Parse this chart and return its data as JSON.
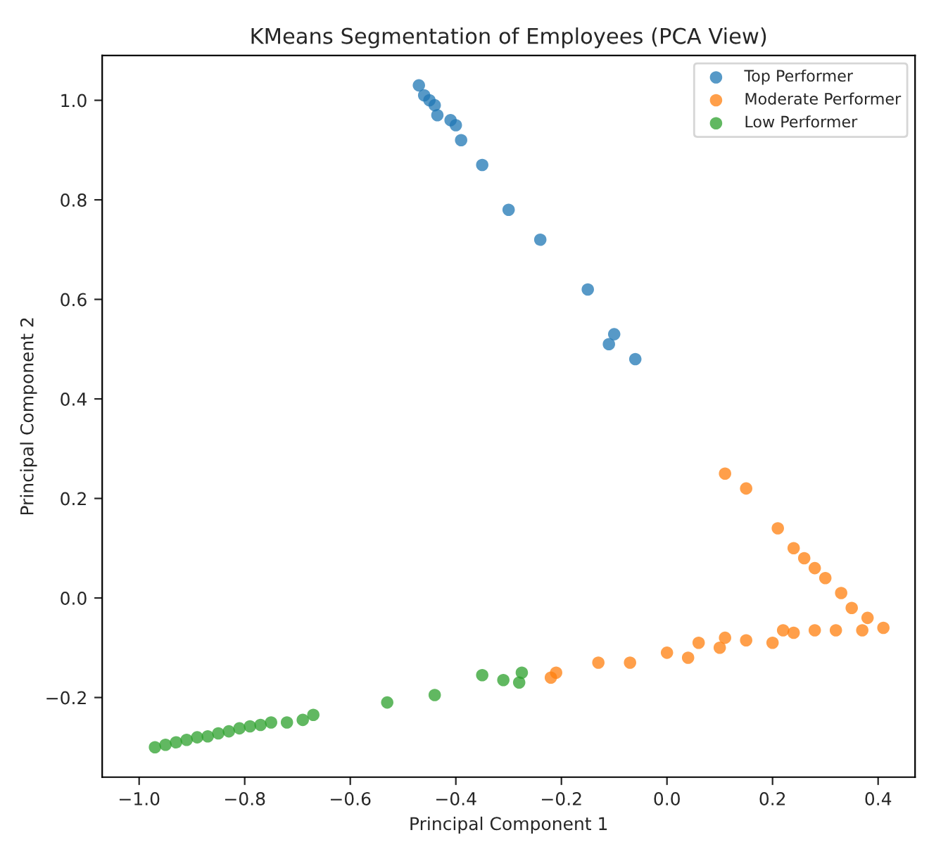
{
  "chart_data": {
    "type": "scatter",
    "title": "KMeans Segmentation of Employees (PCA View)",
    "xlabel": "Principal Component 1",
    "ylabel": "Principal Component 2",
    "xlim": [
      -1.07,
      0.47
    ],
    "ylim": [
      -0.36,
      1.09
    ],
    "xticks": [
      {
        "value": -1.0,
        "label": "−1.0"
      },
      {
        "value": -0.8,
        "label": "−0.8"
      },
      {
        "value": -0.6,
        "label": "−0.6"
      },
      {
        "value": -0.4,
        "label": "−0.4"
      },
      {
        "value": -0.2,
        "label": "−0.2"
      },
      {
        "value": 0.0,
        "label": "0.0"
      },
      {
        "value": 0.2,
        "label": "0.2"
      },
      {
        "value": 0.4,
        "label": "0.4"
      }
    ],
    "yticks": [
      {
        "value": -0.2,
        "label": "−0.2"
      },
      {
        "value": 0.0,
        "label": "0.0"
      },
      {
        "value": 0.2,
        "label": "0.2"
      },
      {
        "value": 0.4,
        "label": "0.4"
      },
      {
        "value": 0.6,
        "label": "0.6"
      },
      {
        "value": 0.8,
        "label": "0.8"
      },
      {
        "value": 1.0,
        "label": "1.0"
      }
    ],
    "legend": "top right",
    "grid": false,
    "marker": "circle",
    "series": [
      {
        "name": "Top Performer",
        "color": "#1f77b4",
        "x": [
          -0.47,
          -0.46,
          -0.45,
          -0.44,
          -0.435,
          -0.41,
          -0.4,
          -0.39,
          -0.35,
          -0.3,
          -0.24,
          -0.15,
          -0.11,
          -0.1,
          -0.06
        ],
        "values": [
          1.03,
          1.01,
          1.0,
          0.99,
          0.97,
          0.96,
          0.95,
          0.92,
          0.87,
          0.78,
          0.72,
          0.62,
          0.51,
          0.53,
          0.48
        ]
      },
      {
        "name": "Moderate Performer",
        "color": "#ff7f0e",
        "x": [
          0.11,
          0.15,
          0.21,
          0.24,
          0.26,
          0.28,
          0.3,
          0.33,
          0.35,
          0.38,
          0.41,
          0.37,
          0.32,
          0.28,
          0.24,
          0.22,
          0.2,
          0.15,
          0.11,
          0.1,
          0.06,
          0.04,
          0.0,
          -0.07,
          -0.13,
          -0.21,
          -0.22
        ],
        "values": [
          0.25,
          0.22,
          0.14,
          0.1,
          0.08,
          0.06,
          0.04,
          0.01,
          -0.02,
          -0.04,
          -0.06,
          -0.065,
          -0.065,
          -0.065,
          -0.07,
          -0.065,
          -0.09,
          -0.085,
          -0.08,
          -0.1,
          -0.09,
          -0.12,
          -0.11,
          -0.13,
          -0.13,
          -0.15,
          -0.16
        ]
      },
      {
        "name": "Low Performer",
        "color": "#2ca02c",
        "x": [
          -0.97,
          -0.95,
          -0.93,
          -0.91,
          -0.89,
          -0.87,
          -0.85,
          -0.83,
          -0.81,
          -0.79,
          -0.77,
          -0.75,
          -0.72,
          -0.69,
          -0.67,
          -0.53,
          -0.44,
          -0.35,
          -0.31,
          -0.28,
          -0.275
        ],
        "values": [
          -0.3,
          -0.295,
          -0.29,
          -0.285,
          -0.28,
          -0.278,
          -0.272,
          -0.268,
          -0.262,
          -0.258,
          -0.255,
          -0.25,
          -0.25,
          -0.245,
          -0.235,
          -0.21,
          -0.195,
          -0.155,
          -0.165,
          -0.17,
          -0.15
        ]
      }
    ]
  }
}
